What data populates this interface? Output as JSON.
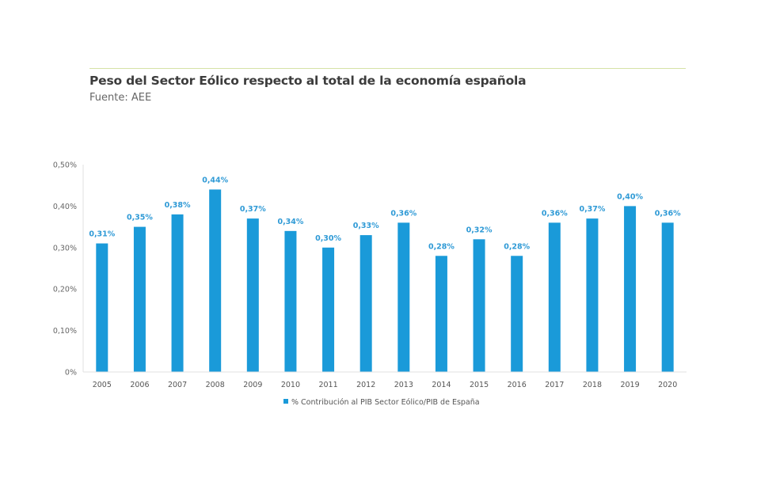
{
  "header": {
    "title": "Peso del Sector Eólico respecto al total de la economía española",
    "subtitle": "Fuente: AEE"
  },
  "colors": {
    "bar": "#1a9ad9",
    "label": "#2f9ad6",
    "rule": "#d6e2a6",
    "axis": "#e2e2e2"
  },
  "chart_data": {
    "type": "bar",
    "title": "Peso del Sector Eólico respecto al total de la economía española",
    "subtitle": "Fuente: AEE",
    "xlabel": "",
    "ylabel": "",
    "categories": [
      "2005",
      "2006",
      "2007",
      "2008",
      "2009",
      "2010",
      "2011",
      "2012",
      "2013",
      "2014",
      "2015",
      "2016",
      "2017",
      "2018",
      "2019",
      "2020"
    ],
    "series": [
      {
        "name": "% Contribución al PIB Sector Eólico/PIB de España",
        "values": [
          0.31,
          0.35,
          0.38,
          0.44,
          0.37,
          0.34,
          0.3,
          0.33,
          0.36,
          0.28,
          0.32,
          0.28,
          0.36,
          0.37,
          0.4,
          0.36
        ],
        "data_labels": [
          "0,31%",
          "0,35%",
          "0,38%",
          "0,44%",
          "0,37%",
          "0,34%",
          "0,30%",
          "0,33%",
          "0,36%",
          "0,28%",
          "0,32%",
          "0,28%",
          "0,36%",
          "0,37%",
          "0,40%",
          "0,36%"
        ]
      }
    ],
    "ylim": [
      0,
      0.5
    ],
    "yticks": [
      0,
      0.1,
      0.2,
      0.3,
      0.4,
      0.5
    ],
    "ytick_labels": [
      "0%",
      "0,10%",
      "0,20%",
      "0,30%",
      "0,40%",
      "0,50%"
    ],
    "grid": false,
    "legend": "bottom-center"
  }
}
